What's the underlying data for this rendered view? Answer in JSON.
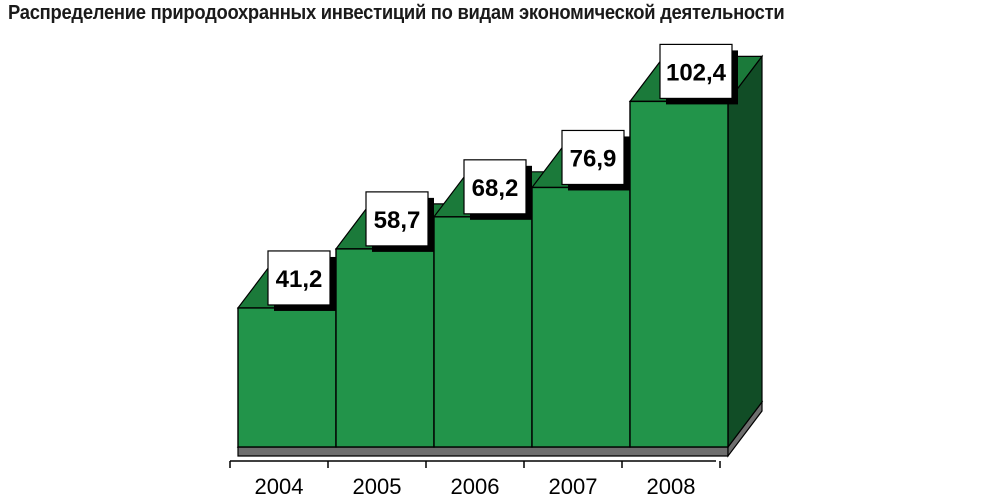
{
  "chart_data": {
    "type": "bar",
    "title": "Распределение природоохранных инвестиций по видам экономической деятельности",
    "categories": [
      "2004",
      "2005",
      "2006",
      "2007",
      "2008"
    ],
    "values": [
      41.2,
      58.7,
      68.2,
      76.9,
      102.4
    ],
    "value_labels": [
      "41,2",
      "58,7",
      "68,2",
      "76,9",
      "102,4"
    ],
    "xlabel": "",
    "ylabel": "",
    "ylim": [
      0,
      110
    ],
    "style": "3d",
    "grid": false,
    "legend": "none",
    "colors": {
      "front": "#22944a",
      "top": "#1b7a3a",
      "side": "#114d26",
      "floor": "#8c8c8c",
      "floor_front": "#6e6e6e",
      "outline": "#000000",
      "label_bg": "#ffffff"
    }
  }
}
